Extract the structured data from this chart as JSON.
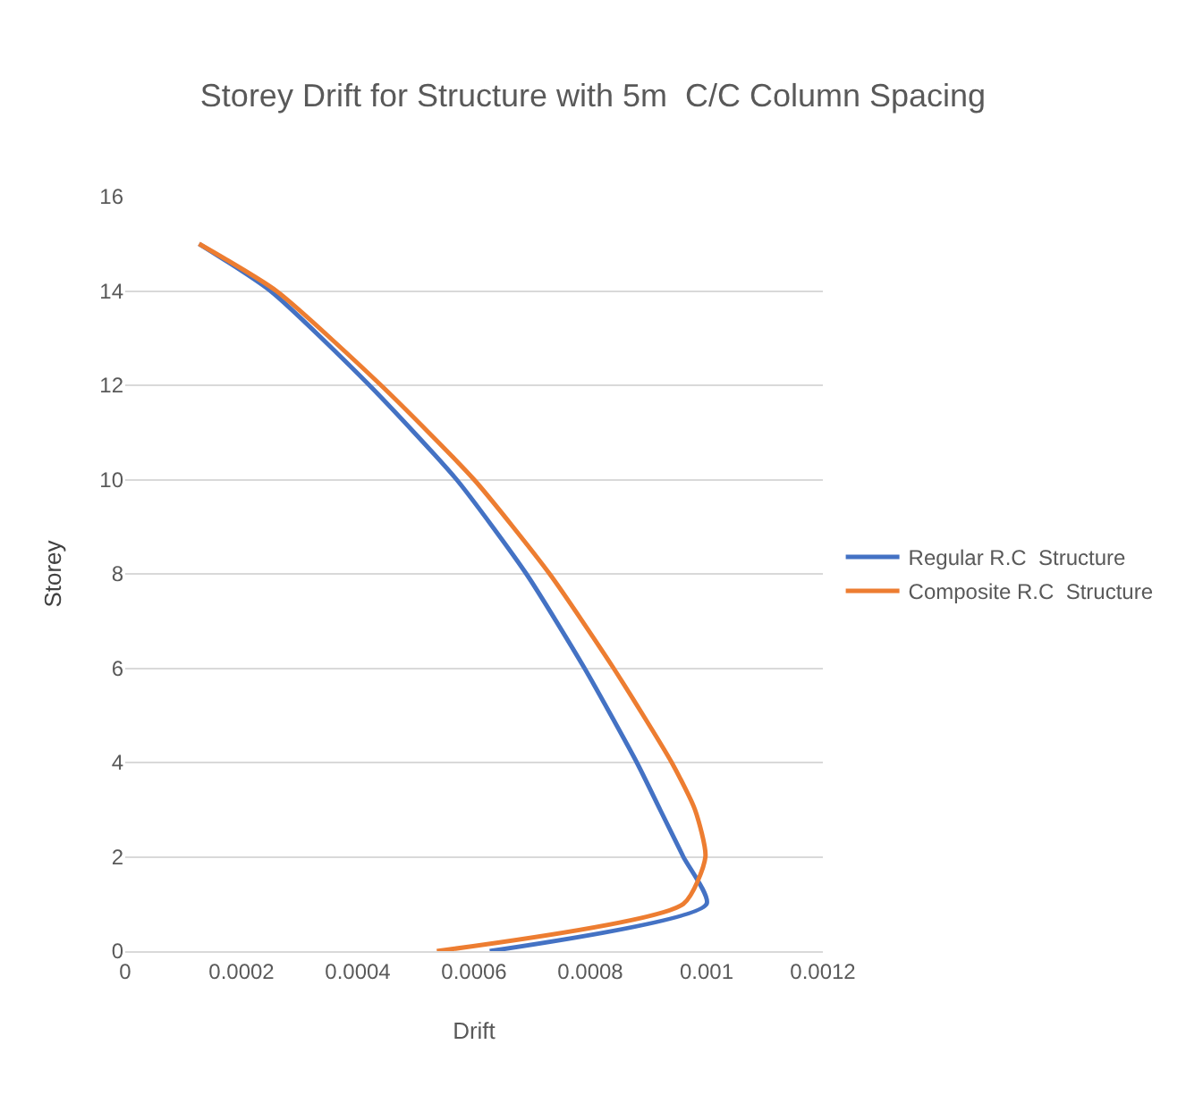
{
  "chart_data": {
    "type": "line",
    "title": "Storey Drift for Structure with 5m  C/C Column Spacing",
    "xlabel": "Drift",
    "ylabel": "Storey",
    "series": [
      {
        "name": "Regular R.C  Structure",
        "color": "#4472c4",
        "x": [
          0.000627,
          0.001,
          0.00096,
          0.00092,
          0.00088,
          0.00079,
          0.00069,
          0.00057,
          0.00042,
          0.00025,
          0.000127
        ],
        "values": [
          0,
          1,
          2,
          3,
          4,
          6,
          8,
          10,
          12,
          14,
          15
        ]
      },
      {
        "name": "Composite R.C  Structure",
        "color": "#ed7d31",
        "x": [
          0.000536,
          0.00096,
          0.000998,
          0.00098,
          0.00094,
          0.00084,
          0.00073,
          0.0006,
          0.00044,
          0.00026,
          0.000127
        ],
        "values": [
          0,
          1,
          2,
          3,
          4,
          6,
          8,
          10,
          12,
          14,
          15
        ]
      }
    ],
    "xlim": [
      0,
      0.0012
    ],
    "xticks": [
      0,
      0.0002,
      0.0004,
      0.0006,
      0.0008,
      0.001,
      0.0012
    ],
    "ylim": [
      0,
      16
    ],
    "yticks": [
      0,
      2,
      4,
      6,
      8,
      10,
      12,
      14,
      16
    ],
    "grid": "y",
    "legend": "right",
    "marker": "none",
    "line_style": "solid"
  }
}
